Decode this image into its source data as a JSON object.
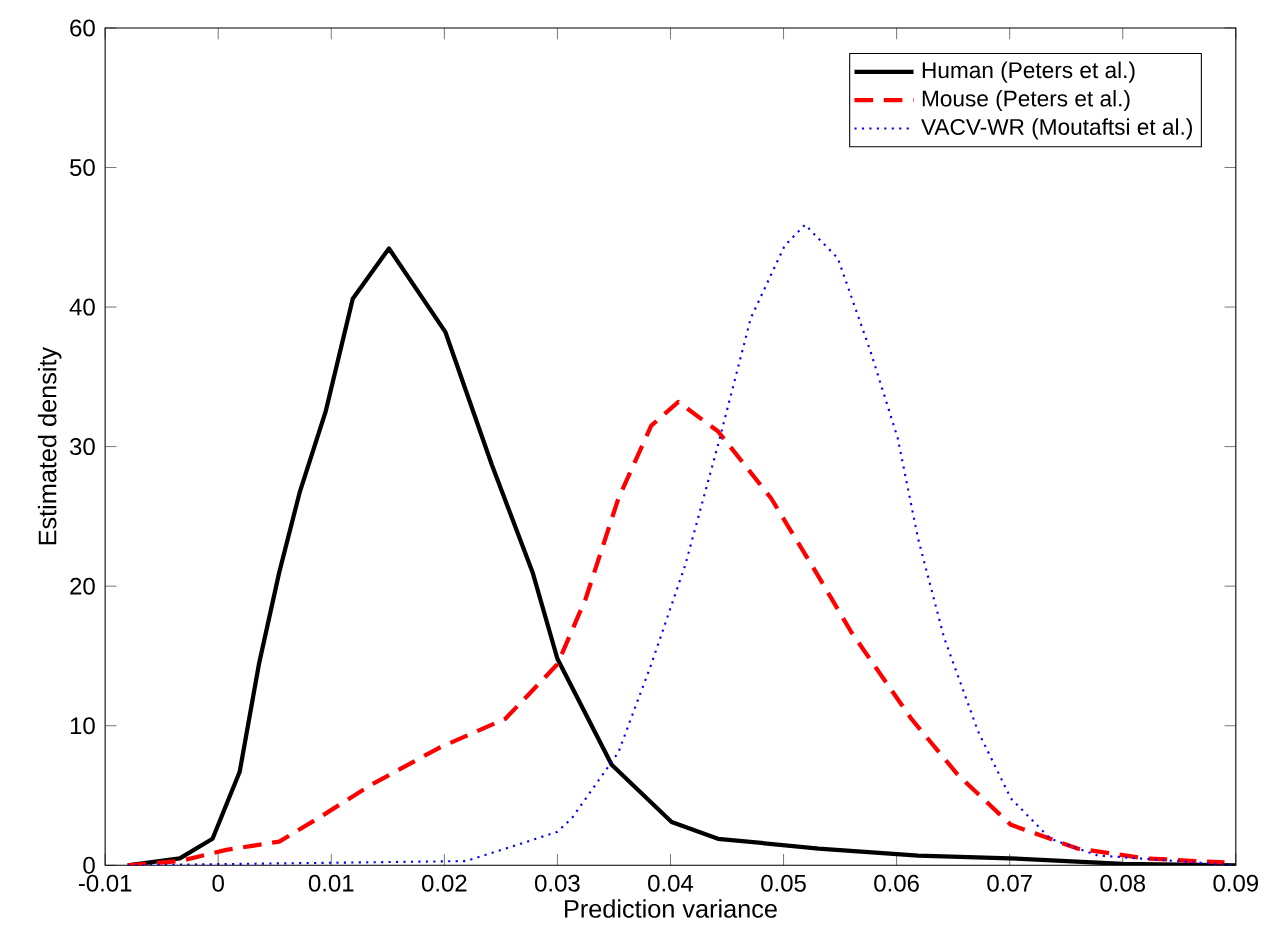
{
  "chart_data": {
    "type": "line",
    "xlabel": "Prediction variance",
    "ylabel": "Estimated density",
    "xlim": [
      -0.01,
      0.09
    ],
    "ylim": [
      0,
      60
    ],
    "xticks": [
      {
        "value": -0.01,
        "label": "-0.01"
      },
      {
        "value": 0,
        "label": "0"
      },
      {
        "value": 0.01,
        "label": "0.01"
      },
      {
        "value": 0.02,
        "label": "0.02"
      },
      {
        "value": 0.03,
        "label": "0.03"
      },
      {
        "value": 0.04,
        "label": "0.04"
      },
      {
        "value": 0.05,
        "label": "0.05"
      },
      {
        "value": 0.06,
        "label": "0.06"
      },
      {
        "value": 0.07,
        "label": "0.07"
      },
      {
        "value": 0.08,
        "label": "0.08"
      },
      {
        "value": 0.09,
        "label": "0.09"
      }
    ],
    "yticks": [
      0,
      10,
      20,
      30,
      40,
      50,
      60
    ],
    "grid": false,
    "legend": "top right",
    "marker": "none",
    "series": [
      {
        "name": "Human (Peters et al.)",
        "color": "#000000",
        "line_style": "solid",
        "x": [
          -0.008,
          -0.0034,
          -0.0005,
          0.0019,
          0.0036,
          0.0054,
          0.0072,
          0.0095,
          0.0119,
          0.0151,
          0.0201,
          0.0242,
          0.0278,
          0.03,
          0.0348,
          0.0401,
          0.0442,
          0.0531,
          0.0619,
          0.07,
          0.08,
          0.09
        ],
        "values": [
          0,
          0.5,
          1.9,
          6.7,
          14.4,
          21,
          26.7,
          32.5,
          40.6,
          44.2,
          38.2,
          28.7,
          21,
          14.8,
          7.2,
          3.1,
          1.9,
          1.2,
          0.7,
          0.5,
          0.1,
          0
        ]
      },
      {
        "name": "Mouse (Peters et al.)",
        "color": "#ff0000",
        "line_style": "dashed",
        "x": [
          -0.008,
          -0.0034,
          0.0007,
          0.0054,
          0.0089,
          0.0136,
          0.0195,
          0.0254,
          0.03,
          0.0325,
          0.0354,
          0.0383,
          0.0407,
          0.0442,
          0.0489,
          0.0525,
          0.056,
          0.0613,
          0.0654,
          0.0701,
          0.076,
          0.0819,
          0.089
        ],
        "values": [
          0,
          0.3,
          1.1,
          1.7,
          3.4,
          5.8,
          8.4,
          10.5,
          14.4,
          19.1,
          26.3,
          31.5,
          33.2,
          31.1,
          26.3,
          21.5,
          16.7,
          10.5,
          6.5,
          2.9,
          1.2,
          0.5,
          0.2
        ]
      },
      {
        "name": "VACV-WR (Moutaftsi et al.)",
        "color": "#0000ff",
        "line_style": "dotted",
        "x": [
          -0.008,
          0.0219,
          0.0266,
          0.03,
          0.0313,
          0.0354,
          0.0383,
          0.0413,
          0.0442,
          0.0471,
          0.0501,
          0.0519,
          0.0548,
          0.0577,
          0.0601,
          0.0619,
          0.0642,
          0.0672,
          0.0701,
          0.0736,
          0.0778,
          0.0848,
          0.09
        ],
        "values": [
          0,
          0.3,
          1.5,
          2.4,
          3.4,
          8.1,
          14.4,
          21.5,
          30.1,
          39.2,
          44.4,
          45.9,
          43.5,
          36.8,
          30.6,
          23.4,
          16.3,
          9.6,
          4.8,
          1.9,
          0.7,
          0.3,
          0
        ]
      }
    ]
  }
}
